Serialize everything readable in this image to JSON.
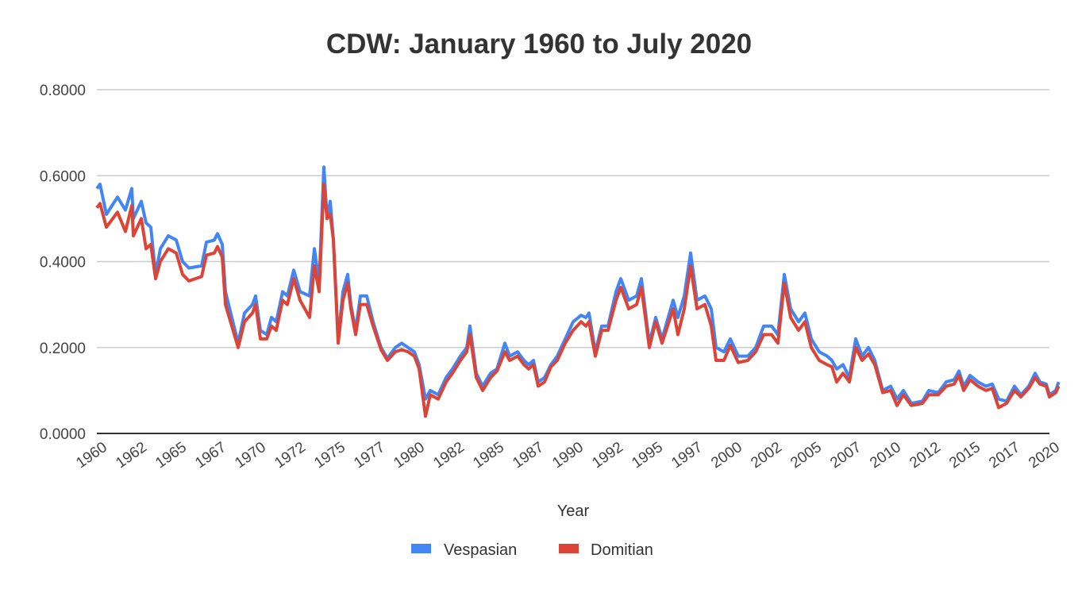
{
  "chart_data": {
    "type": "line",
    "title": "CDW: January 1960 to July 2020",
    "xlabel": "Year",
    "ylabel": "",
    "ylim": [
      0,
      0.8
    ],
    "xlim": [
      1960,
      2020.58
    ],
    "yticks": [
      "0.0000",
      "0.2000",
      "0.4000",
      "0.6000",
      "0.8000"
    ],
    "ytick_values": [
      0,
      0.2,
      0.4,
      0.6,
      0.8
    ],
    "xticks": [
      "1960",
      "1962",
      "1965",
      "1967",
      "1970",
      "1972",
      "1975",
      "1977",
      "1980",
      "1982",
      "1985",
      "1987",
      "1990",
      "1992",
      "1995",
      "1997",
      "2000",
      "2002",
      "2005",
      "2007",
      "2010",
      "2012",
      "2015",
      "2017",
      "2020"
    ],
    "grid": true,
    "legend_position": "bottom",
    "colors": {
      "Vespasian": "#4285f4",
      "Domitian": "#db4437"
    },
    "x": [
      1960.0,
      1960.2,
      1960.6,
      1961.3,
      1961.8,
      1962.2,
      1962.3,
      1962.8,
      1963.1,
      1963.4,
      1963.7,
      1964.0,
      1964.5,
      1965.0,
      1965.4,
      1965.8,
      1966.6,
      1966.9,
      1967.4,
      1967.6,
      1967.9,
      1968.1,
      1968.5,
      1968.9,
      1969.3,
      1969.8,
      1970.0,
      1970.3,
      1970.7,
      1971.0,
      1971.3,
      1971.7,
      1972.0,
      1972.4,
      1972.8,
      1973.4,
      1973.7,
      1974.0,
      1974.3,
      1974.5,
      1974.7,
      1974.9,
      1975.2,
      1975.5,
      1975.8,
      1976.0,
      1976.3,
      1976.6,
      1977.0,
      1977.4,
      1977.9,
      1978.3,
      1978.8,
      1979.2,
      1979.6,
      1980.0,
      1980.3,
      1980.7,
      1981.0,
      1981.5,
      1982.0,
      1982.4,
      1982.9,
      1983.3,
      1983.5,
      1983.9,
      1984.3,
      1984.8,
      1985.2,
      1985.7,
      1986.0,
      1986.5,
      1986.9,
      1987.2,
      1987.5,
      1987.8,
      1988.2,
      1988.6,
      1989.0,
      1989.5,
      1990.0,
      1990.5,
      1990.8,
      1991.0,
      1991.4,
      1991.8,
      1992.2,
      1992.7,
      1993.0,
      1993.5,
      1994.0,
      1994.3,
      1994.8,
      1995.2,
      1995.6,
      1996.3,
      1996.6,
      1997.0,
      1997.4,
      1997.8,
      1998.3,
      1998.7,
      1999.0,
      1999.5,
      1999.9,
      2000.4,
      2001.0,
      2001.5,
      2002.0,
      2002.5,
      2002.9,
      2003.3,
      2003.7,
      2004.2,
      2004.6,
      2005.0,
      2005.5,
      2006.0,
      2006.3,
      2006.6,
      2007.0,
      2007.4,
      2007.8,
      2008.2,
      2008.6,
      2009.0,
      2009.5,
      2010.0,
      2010.4,
      2010.8,
      2011.3,
      2012.0,
      2012.4,
      2013.0,
      2013.5,
      2014.0,
      2014.3,
      2014.6,
      2015.0,
      2015.5,
      2016.0,
      2016.4,
      2016.8,
      2017.3,
      2017.8,
      2018.2,
      2018.7,
      2019.1,
      2019.4,
      2019.8,
      2020.0,
      2020.4,
      2020.58
    ],
    "series": [
      {
        "name": "Vespasian",
        "values": [
          0.57,
          0.58,
          0.51,
          0.55,
          0.52,
          0.57,
          0.5,
          0.54,
          0.49,
          0.48,
          0.37,
          0.43,
          0.46,
          0.45,
          0.4,
          0.385,
          0.39,
          0.445,
          0.45,
          0.465,
          0.44,
          0.33,
          0.27,
          0.21,
          0.28,
          0.3,
          0.32,
          0.24,
          0.23,
          0.27,
          0.26,
          0.33,
          0.32,
          0.38,
          0.33,
          0.32,
          0.43,
          0.35,
          0.62,
          0.5,
          0.54,
          0.45,
          0.22,
          0.33,
          0.37,
          0.3,
          0.24,
          0.32,
          0.32,
          0.26,
          0.2,
          0.175,
          0.2,
          0.21,
          0.2,
          0.19,
          0.16,
          0.08,
          0.1,
          0.09,
          0.13,
          0.15,
          0.18,
          0.2,
          0.25,
          0.14,
          0.11,
          0.14,
          0.15,
          0.21,
          0.18,
          0.19,
          0.17,
          0.16,
          0.17,
          0.12,
          0.13,
          0.16,
          0.18,
          0.22,
          0.26,
          0.275,
          0.27,
          0.28,
          0.19,
          0.25,
          0.25,
          0.33,
          0.36,
          0.31,
          0.32,
          0.36,
          0.21,
          0.27,
          0.22,
          0.31,
          0.27,
          0.32,
          0.42,
          0.31,
          0.32,
          0.29,
          0.2,
          0.19,
          0.22,
          0.18,
          0.18,
          0.2,
          0.25,
          0.25,
          0.23,
          0.37,
          0.29,
          0.26,
          0.28,
          0.22,
          0.19,
          0.18,
          0.17,
          0.15,
          0.16,
          0.13,
          0.22,
          0.18,
          0.2,
          0.17,
          0.1,
          0.11,
          0.08,
          0.1,
          0.07,
          0.075,
          0.1,
          0.095,
          0.12,
          0.125,
          0.145,
          0.11,
          0.135,
          0.12,
          0.11,
          0.115,
          0.08,
          0.075,
          0.11,
          0.09,
          0.11,
          0.14,
          0.12,
          0.115,
          0.09,
          0.1,
          0.12
        ]
      },
      {
        "name": "Domitian",
        "values": [
          0.525,
          0.535,
          0.48,
          0.515,
          0.47,
          0.53,
          0.46,
          0.5,
          0.43,
          0.44,
          0.36,
          0.4,
          0.43,
          0.42,
          0.37,
          0.355,
          0.365,
          0.415,
          0.42,
          0.435,
          0.41,
          0.3,
          0.25,
          0.2,
          0.26,
          0.28,
          0.3,
          0.22,
          0.22,
          0.25,
          0.24,
          0.31,
          0.3,
          0.36,
          0.31,
          0.27,
          0.39,
          0.33,
          0.58,
          0.5,
          0.51,
          0.45,
          0.21,
          0.31,
          0.35,
          0.29,
          0.23,
          0.3,
          0.3,
          0.25,
          0.195,
          0.17,
          0.19,
          0.195,
          0.19,
          0.18,
          0.15,
          0.04,
          0.09,
          0.08,
          0.12,
          0.14,
          0.17,
          0.19,
          0.23,
          0.13,
          0.1,
          0.13,
          0.145,
          0.19,
          0.17,
          0.18,
          0.16,
          0.15,
          0.16,
          0.11,
          0.12,
          0.155,
          0.17,
          0.21,
          0.24,
          0.26,
          0.25,
          0.26,
          0.18,
          0.24,
          0.24,
          0.31,
          0.34,
          0.29,
          0.3,
          0.34,
          0.2,
          0.26,
          0.21,
          0.29,
          0.23,
          0.29,
          0.39,
          0.29,
          0.3,
          0.25,
          0.17,
          0.17,
          0.205,
          0.165,
          0.17,
          0.19,
          0.23,
          0.23,
          0.21,
          0.35,
          0.27,
          0.24,
          0.26,
          0.2,
          0.17,
          0.16,
          0.155,
          0.12,
          0.14,
          0.12,
          0.2,
          0.17,
          0.185,
          0.16,
          0.095,
          0.1,
          0.065,
          0.09,
          0.065,
          0.07,
          0.09,
          0.09,
          0.11,
          0.115,
          0.135,
          0.1,
          0.125,
          0.11,
          0.1,
          0.105,
          0.06,
          0.07,
          0.1,
          0.085,
          0.105,
          0.13,
          0.115,
          0.11,
          0.085,
          0.095,
          0.11
        ]
      }
    ]
  }
}
